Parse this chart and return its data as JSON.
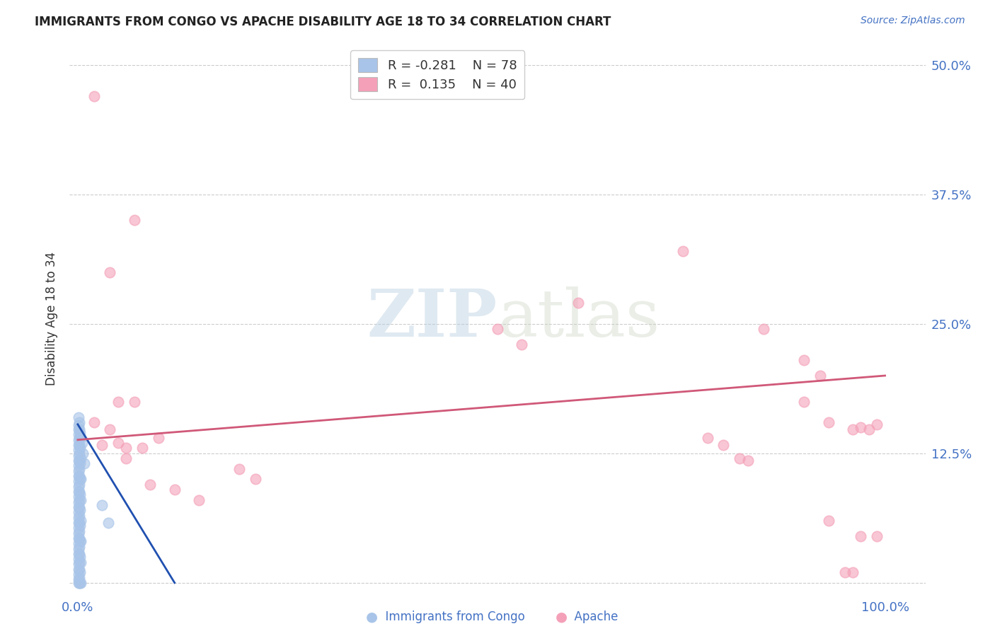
{
  "title": "IMMIGRANTS FROM CONGO VS APACHE DISABILITY AGE 18 TO 34 CORRELATION CHART",
  "source": "Source: ZipAtlas.com",
  "xlabel_blue": "Immigrants from Congo",
  "xlabel_pink": "Apache",
  "ylabel": "Disability Age 18 to 34",
  "R_blue": -0.281,
  "N_blue": 78,
  "R_pink": 0.135,
  "N_pink": 40,
  "xlim": [
    -0.01,
    1.05
  ],
  "ylim": [
    -0.01,
    0.52
  ],
  "xticks": [
    0.0,
    1.0
  ],
  "xtick_labels": [
    "0.0%",
    "100.0%"
  ],
  "yticks": [
    0.0,
    0.125,
    0.25,
    0.375,
    0.5
  ],
  "ytick_labels": [
    "",
    "12.5%",
    "25.0%",
    "37.5%",
    "50.0%"
  ],
  "blue_color": "#a8c4e8",
  "pink_color": "#f4a0b8",
  "blue_line_color": "#2050b0",
  "pink_line_color": "#d05878",
  "blue_line": [
    [
      0.0,
      0.153
    ],
    [
      0.12,
      0.0
    ]
  ],
  "pink_line": [
    [
      0.0,
      0.138
    ],
    [
      1.0,
      0.2
    ]
  ],
  "blue_scatter": [
    [
      0.001,
      0.16
    ],
    [
      0.001,
      0.152
    ],
    [
      0.001,
      0.148
    ],
    [
      0.001,
      0.143
    ],
    [
      0.001,
      0.138
    ],
    [
      0.001,
      0.133
    ],
    [
      0.001,
      0.128
    ],
    [
      0.001,
      0.123
    ],
    [
      0.001,
      0.118
    ],
    [
      0.001,
      0.113
    ],
    [
      0.001,
      0.108
    ],
    [
      0.001,
      0.103
    ],
    [
      0.001,
      0.098
    ],
    [
      0.001,
      0.093
    ],
    [
      0.001,
      0.088
    ],
    [
      0.001,
      0.083
    ],
    [
      0.001,
      0.078
    ],
    [
      0.001,
      0.073
    ],
    [
      0.001,
      0.068
    ],
    [
      0.001,
      0.063
    ],
    [
      0.001,
      0.058
    ],
    [
      0.001,
      0.053
    ],
    [
      0.001,
      0.048
    ],
    [
      0.001,
      0.043
    ],
    [
      0.001,
      0.038
    ],
    [
      0.001,
      0.033
    ],
    [
      0.001,
      0.028
    ],
    [
      0.001,
      0.023
    ],
    [
      0.001,
      0.018
    ],
    [
      0.001,
      0.013
    ],
    [
      0.001,
      0.008
    ],
    [
      0.001,
      0.003
    ],
    [
      0.002,
      0.155
    ],
    [
      0.002,
      0.148
    ],
    [
      0.002,
      0.14
    ],
    [
      0.002,
      0.133
    ],
    [
      0.002,
      0.125
    ],
    [
      0.002,
      0.118
    ],
    [
      0.002,
      0.11
    ],
    [
      0.002,
      0.103
    ],
    [
      0.002,
      0.095
    ],
    [
      0.002,
      0.088
    ],
    [
      0.002,
      0.08
    ],
    [
      0.002,
      0.073
    ],
    [
      0.002,
      0.065
    ],
    [
      0.002,
      0.058
    ],
    [
      0.002,
      0.05
    ],
    [
      0.002,
      0.043
    ],
    [
      0.002,
      0.035
    ],
    [
      0.002,
      0.028
    ],
    [
      0.002,
      0.02
    ],
    [
      0.002,
      0.013
    ],
    [
      0.002,
      0.005
    ],
    [
      0.003,
      0.145
    ],
    [
      0.003,
      0.13
    ],
    [
      0.003,
      0.115
    ],
    [
      0.003,
      0.1
    ],
    [
      0.003,
      0.085
    ],
    [
      0.003,
      0.07
    ],
    [
      0.003,
      0.055
    ],
    [
      0.003,
      0.04
    ],
    [
      0.003,
      0.025
    ],
    [
      0.003,
      0.01
    ],
    [
      0.004,
      0.14
    ],
    [
      0.004,
      0.12
    ],
    [
      0.004,
      0.1
    ],
    [
      0.004,
      0.08
    ],
    [
      0.004,
      0.06
    ],
    [
      0.004,
      0.04
    ],
    [
      0.004,
      0.02
    ],
    [
      0.005,
      0.135
    ],
    [
      0.006,
      0.125
    ],
    [
      0.008,
      0.115
    ],
    [
      0.03,
      0.075
    ],
    [
      0.038,
      0.058
    ],
    [
      0.001,
      0.0
    ],
    [
      0.002,
      0.0
    ],
    [
      0.003,
      0.0
    ],
    [
      0.004,
      0.0
    ]
  ],
  "pink_scatter": [
    [
      0.02,
      0.47
    ],
    [
      0.07,
      0.35
    ],
    [
      0.04,
      0.3
    ],
    [
      0.05,
      0.175
    ],
    [
      0.07,
      0.175
    ],
    [
      0.55,
      0.23
    ],
    [
      0.62,
      0.27
    ],
    [
      0.52,
      0.245
    ],
    [
      0.75,
      0.32
    ],
    [
      0.85,
      0.245
    ],
    [
      0.9,
      0.215
    ],
    [
      0.9,
      0.175
    ],
    [
      0.92,
      0.2
    ],
    [
      0.93,
      0.155
    ],
    [
      0.96,
      0.148
    ],
    [
      0.97,
      0.15
    ],
    [
      0.99,
      0.153
    ],
    [
      0.98,
      0.148
    ],
    [
      0.78,
      0.14
    ],
    [
      0.8,
      0.133
    ],
    [
      0.82,
      0.12
    ],
    [
      0.83,
      0.118
    ],
    [
      0.1,
      0.14
    ],
    [
      0.05,
      0.135
    ],
    [
      0.06,
      0.13
    ],
    [
      0.08,
      0.13
    ],
    [
      0.09,
      0.095
    ],
    [
      0.12,
      0.09
    ],
    [
      0.15,
      0.08
    ],
    [
      0.2,
      0.11
    ],
    [
      0.22,
      0.1
    ],
    [
      0.93,
      0.06
    ],
    [
      0.97,
      0.045
    ],
    [
      0.99,
      0.045
    ],
    [
      0.95,
      0.01
    ],
    [
      0.96,
      0.01
    ],
    [
      0.02,
      0.155
    ],
    [
      0.04,
      0.148
    ],
    [
      0.03,
      0.133
    ],
    [
      0.06,
      0.12
    ]
  ],
  "watermark_zip": "ZIP",
  "watermark_atlas": "atlas",
  "background_color": "#ffffff",
  "grid_color": "#cccccc"
}
